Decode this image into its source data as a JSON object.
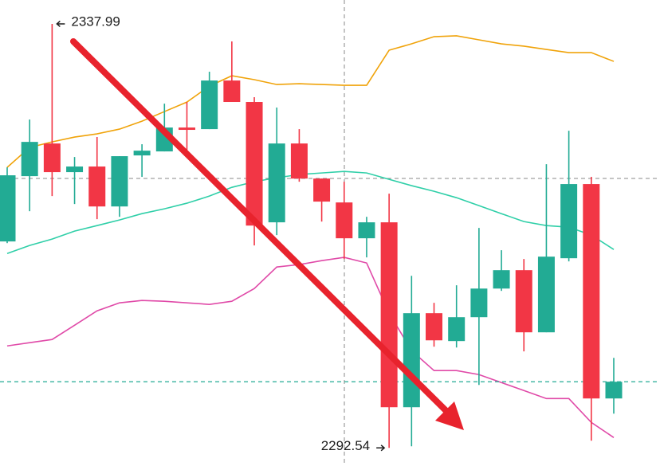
{
  "chart_data": {
    "type": "candlestick",
    "ylim": [
      2290.6,
      2340.55
    ],
    "up_color": "#22ab94",
    "down_color": "#f23645",
    "candles": [
      {
        "open": 2314.67,
        "high": 2322.61,
        "low": 2314.49,
        "close": 2321.76
      },
      {
        "open": 2321.67,
        "high": 2327.74,
        "low": 2317.91,
        "close": 2325.34
      },
      {
        "open": 2325.17,
        "high": 2337.99,
        "low": 2319.53,
        "close": 2322.1
      },
      {
        "open": 2322.1,
        "high": 2323.72,
        "low": 2318.68,
        "close": 2322.7
      },
      {
        "open": 2322.7,
        "high": 2325.86,
        "low": 2317.06,
        "close": 2318.42
      },
      {
        "open": 2318.42,
        "high": 2323.81,
        "low": 2317.31,
        "close": 2323.81
      },
      {
        "open": 2323.89,
        "high": 2325.09,
        "low": 2321.59,
        "close": 2324.4
      },
      {
        "open": 2324.32,
        "high": 2329.44,
        "low": 2324.32,
        "close": 2326.88
      },
      {
        "open": 2326.88,
        "high": 2329.62,
        "low": 2323.98,
        "close": 2326.63
      },
      {
        "open": 2326.71,
        "high": 2332.86,
        "low": 2326.71,
        "close": 2331.92
      },
      {
        "open": 2331.92,
        "high": 2336.11,
        "low": 2329.62,
        "close": 2329.62
      },
      {
        "open": 2329.62,
        "high": 2330.13,
        "low": 2314.24,
        "close": 2316.37
      },
      {
        "open": 2316.72,
        "high": 2329.02,
        "low": 2315.35,
        "close": 2325.17
      },
      {
        "open": 2325.17,
        "high": 2326.71,
        "low": 2321.07,
        "close": 2321.41
      },
      {
        "open": 2321.41,
        "high": 2321.41,
        "low": 2316.8,
        "close": 2318.94
      },
      {
        "open": 2318.85,
        "high": 2321.07,
        "low": 2312.79,
        "close": 2315.01
      },
      {
        "open": 2315.01,
        "high": 2317.31,
        "low": 2312.96,
        "close": 2316.72
      },
      {
        "open": 2316.72,
        "high": 2319.79,
        "low": 2292.54,
        "close": 2296.9
      },
      {
        "open": 2296.9,
        "high": 2310.99,
        "low": 2292.71,
        "close": 2306.98
      },
      {
        "open": 2306.98,
        "high": 2308.09,
        "low": 2303.39,
        "close": 2304.07
      },
      {
        "open": 2303.99,
        "high": 2309.97,
        "low": 2303.3,
        "close": 2306.55
      },
      {
        "open": 2306.55,
        "high": 2316.12,
        "low": 2299.29,
        "close": 2309.62
      },
      {
        "open": 2309.62,
        "high": 2313.73,
        "low": 2309.37,
        "close": 2311.59
      },
      {
        "open": 2311.59,
        "high": 2312.79,
        "low": 2302.88,
        "close": 2304.93
      },
      {
        "open": 2304.93,
        "high": 2322.95,
        "low": 2304.93,
        "close": 2313.04
      },
      {
        "open": 2312.87,
        "high": 2326.54,
        "low": 2312.53,
        "close": 2320.82
      },
      {
        "open": 2320.82,
        "high": 2321.59,
        "low": 2293.31,
        "close": 2297.84
      },
      {
        "open": 2297.84,
        "high": 2302.19,
        "low": 2296.21,
        "close": 2299.63
      }
    ],
    "lines": [
      {
        "color": "#f0a30a",
        "values": [
          2322.61,
          2324.75,
          2325.34,
          2325.86,
          2326.2,
          2326.71,
          2327.56,
          2328.59,
          2329.61,
          2331.32,
          2332.43,
          2332.01,
          2331.49,
          2331.58,
          2331.49,
          2331.41,
          2331.41,
          2335.17,
          2335.85,
          2336.62,
          2336.71,
          2336.28,
          2335.85,
          2335.6,
          2335.25,
          2334.91,
          2334.91,
          2333.97
        ]
      },
      {
        "color": "#2fcfa8",
        "values": [
          2313.38,
          2314.24,
          2314.92,
          2315.78,
          2316.37,
          2316.97,
          2317.65,
          2318.17,
          2318.77,
          2319.53,
          2320.47,
          2321.07,
          2321.5,
          2321.84,
          2322.01,
          2322.18,
          2322.01,
          2321.33,
          2320.65,
          2320.05,
          2319.36,
          2318.51,
          2317.65,
          2316.8,
          2316.37,
          2316.2,
          2315.35,
          2313.81
        ]
      },
      {
        "color": "#e04aa8",
        "values": [
          2303.47,
          2303.82,
          2304.16,
          2305.69,
          2307.23,
          2308.09,
          2308.34,
          2308.26,
          2308.09,
          2307.92,
          2308.26,
          2309.62,
          2311.93,
          2312.19,
          2312.61,
          2312.96,
          2312.36,
          2306.98,
          2302.96,
          2300.83,
          2300.83,
          2300.4,
          2299.54,
          2298.69,
          2297.83,
          2297.83,
          2295.27,
          2293.65
        ]
      }
    ]
  }
}
